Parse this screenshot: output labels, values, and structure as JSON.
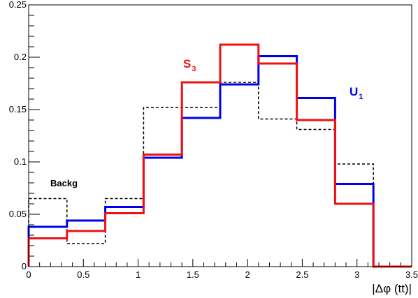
{
  "chart_data": {
    "type": "line",
    "style": "step-histogram",
    "xlabel": "|Δφ (tt)|",
    "ylabel": "",
    "title": "",
    "xlim": [
      0,
      3.5
    ],
    "ylim": [
      0,
      0.25
    ],
    "x_ticks": [
      "0",
      "0.5",
      "1",
      "1.5",
      "2",
      "2.5",
      "3",
      "3.5"
    ],
    "y_ticks": [
      "0",
      "0.05",
      "0.1",
      "0.15",
      "0.2",
      "0.25"
    ],
    "bin_edges": [
      0,
      0.35,
      0.7,
      1.05,
      1.4,
      1.75,
      2.1,
      2.45,
      2.8,
      3.15,
      3.5
    ],
    "grid": false,
    "series": [
      {
        "name": "Backg",
        "color": "#000000",
        "line_style": "dashed",
        "values": [
          0.065,
          0.022,
          0.065,
          0.152,
          0.152,
          0.176,
          0.141,
          0.131,
          0.098,
          0.0
        ]
      },
      {
        "name": "U",
        "subscript": "1",
        "color": "#0000ee",
        "line_style": "solid",
        "values": [
          0.038,
          0.044,
          0.057,
          0.104,
          0.142,
          0.174,
          0.201,
          0.161,
          0.079,
          0.0
        ]
      },
      {
        "name": "S",
        "subscript": "3",
        "color": "#ee1111",
        "line_style": "solid",
        "values": [
          0.027,
          0.034,
          0.051,
          0.107,
          0.176,
          0.212,
          0.194,
          0.14,
          0.06,
          0.0
        ]
      }
    ]
  }
}
